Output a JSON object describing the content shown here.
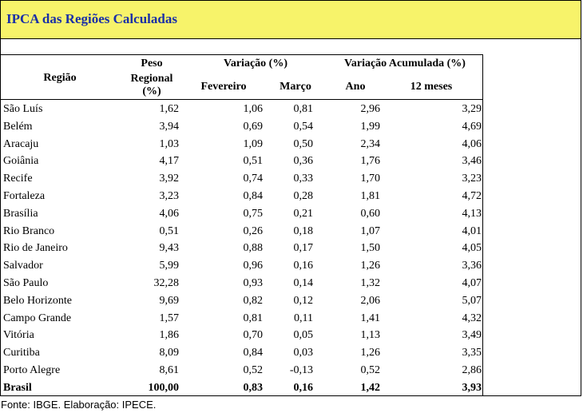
{
  "title": "IPCA das Regiões Calculadas",
  "headers": {
    "regiao": "Região",
    "peso_line1": "Peso",
    "peso_line2": "Regional",
    "peso_line3": "(%)",
    "variacao": "Variação (%)",
    "fevereiro": "Fevereiro",
    "marco": "Março",
    "variacao_acumulada": "Variação Acumulada (%)",
    "ano": "Ano",
    "doze_meses": "12 meses"
  },
  "rows": [
    {
      "regiao": "São Luís",
      "peso": "1,62",
      "fevereiro": "1,06",
      "marco": "0,81",
      "ano": "2,96",
      "doze_meses": "3,29"
    },
    {
      "regiao": "Belém",
      "peso": "3,94",
      "fevereiro": "0,69",
      "marco": "0,54",
      "ano": "1,99",
      "doze_meses": "4,69"
    },
    {
      "regiao": "Aracaju",
      "peso": "1,03",
      "fevereiro": "1,09",
      "marco": "0,50",
      "ano": "2,34",
      "doze_meses": "4,06"
    },
    {
      "regiao": "Goiânia",
      "peso": "4,17",
      "fevereiro": "0,51",
      "marco": "0,36",
      "ano": "1,76",
      "doze_meses": "3,46"
    },
    {
      "regiao": "Recife",
      "peso": "3,92",
      "fevereiro": "0,74",
      "marco": "0,33",
      "ano": "1,70",
      "doze_meses": "3,23"
    },
    {
      "regiao": "Fortaleza",
      "peso": "3,23",
      "fevereiro": "0,84",
      "marco": "0,28",
      "ano": "1,81",
      "doze_meses": "4,72"
    },
    {
      "regiao": "Brasília",
      "peso": "4,06",
      "fevereiro": "0,75",
      "marco": "0,21",
      "ano": "0,60",
      "doze_meses": "4,13"
    },
    {
      "regiao": "Rio Branco",
      "peso": "0,51",
      "fevereiro": "0,26",
      "marco": "0,18",
      "ano": "1,07",
      "doze_meses": "4,01"
    },
    {
      "regiao": "Rio de Janeiro",
      "peso": "9,43",
      "fevereiro": "0,88",
      "marco": "0,17",
      "ano": "1,50",
      "doze_meses": "4,05"
    },
    {
      "regiao": "Salvador",
      "peso": "5,99",
      "fevereiro": "0,96",
      "marco": "0,16",
      "ano": "1,26",
      "doze_meses": "3,36"
    },
    {
      "regiao": "São Paulo",
      "peso": "32,28",
      "fevereiro": "0,93",
      "marco": "0,14",
      "ano": "1,32",
      "doze_meses": "4,07"
    },
    {
      "regiao": "Belo Horizonte",
      "peso": "9,69",
      "fevereiro": "0,82",
      "marco": "0,12",
      "ano": "2,06",
      "doze_meses": "5,07"
    },
    {
      "regiao": "Campo Grande",
      "peso": "1,57",
      "fevereiro": "0,81",
      "marco": "0,11",
      "ano": "1,41",
      "doze_meses": "4,32"
    },
    {
      "regiao": "Vitória",
      "peso": "1,86",
      "fevereiro": "0,70",
      "marco": "0,05",
      "ano": "1,13",
      "doze_meses": "3,49"
    },
    {
      "regiao": "Curitiba",
      "peso": "8,09",
      "fevereiro": "0,84",
      "marco": "0,03",
      "ano": "1,26",
      "doze_meses": "3,35"
    },
    {
      "regiao": "Porto Alegre",
      "peso": "8,61",
      "fevereiro": "0,52",
      "marco": "-0,13",
      "ano": "0,52",
      "doze_meses": "2,86"
    }
  ],
  "total": {
    "regiao": "Brasil",
    "peso": "100,00",
    "fevereiro": "0,83",
    "marco": "0,16",
    "ano": "1,42",
    "doze_meses": "3,93"
  },
  "footer": "Fonte: IBGE. Elaboração: IPECE.",
  "colors": {
    "title_bg": "#f7f36a",
    "title_text": "#1a2fa8"
  }
}
